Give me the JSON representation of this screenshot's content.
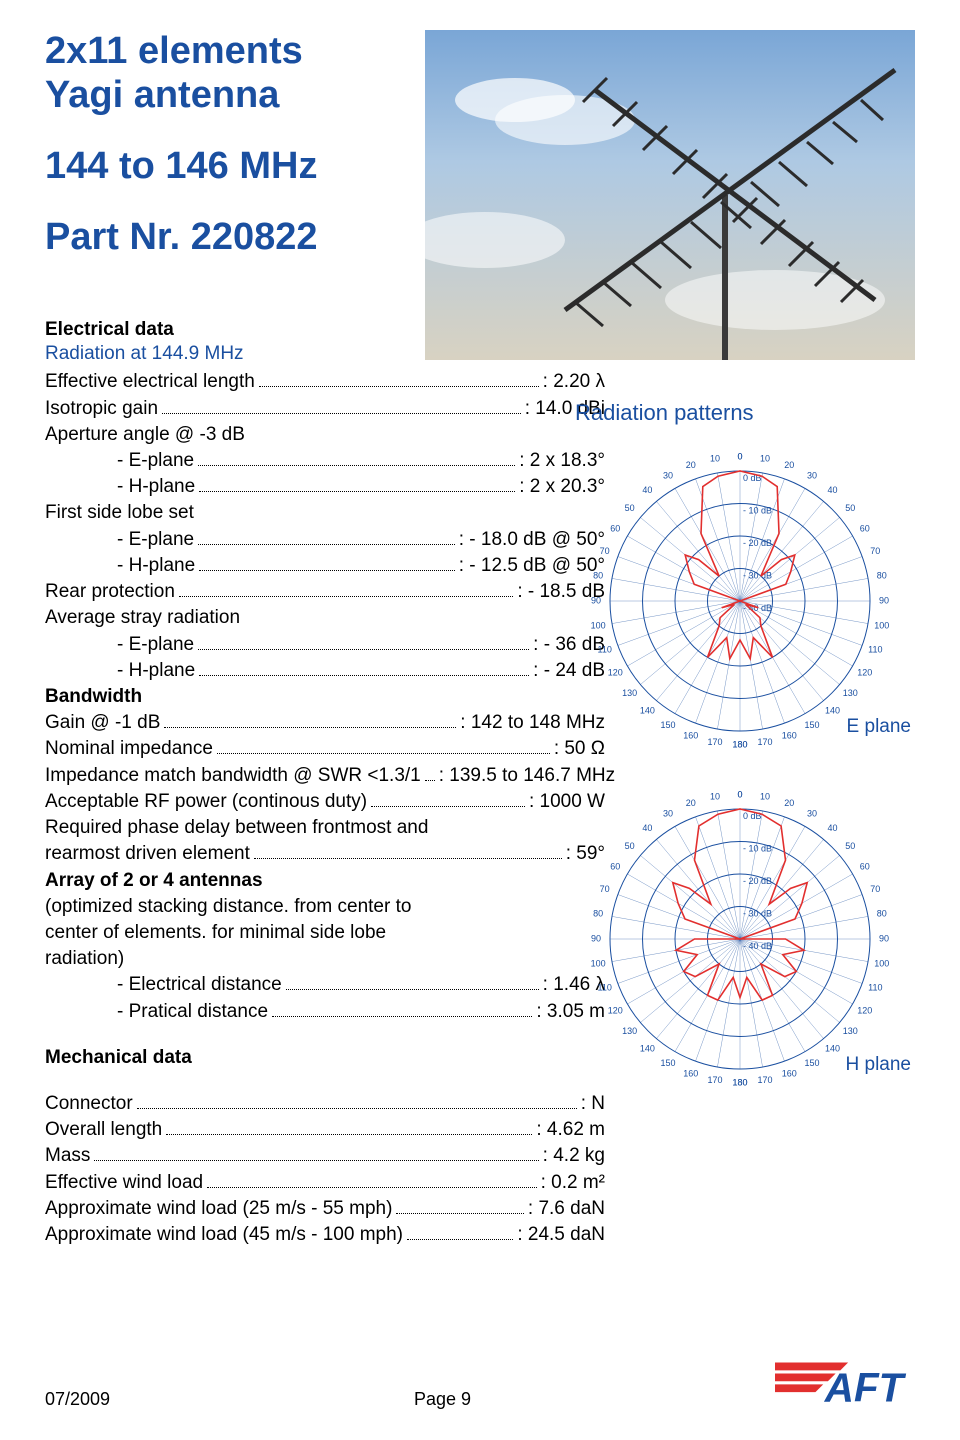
{
  "title": {
    "line1": "2x11 elements",
    "line2": "Yagi antenna",
    "freq": "144 to 146 MHz",
    "part": "Part Nr. 220822"
  },
  "colors": {
    "brand": "#1a4fa0",
    "brand_red": "#e22f2e",
    "text": "#000000",
    "polar_grid": "#1a4fa0",
    "polar_trace": "#e22f2e"
  },
  "electrical": {
    "heading": "Electrical data",
    "subheading": "Radiation at 144.9 MHz",
    "lines": [
      {
        "label": "Effective electrical length",
        "value": ": 2.20 λ"
      },
      {
        "label": "Isotropic gain",
        "value": ": 14.0 dBi"
      },
      {
        "plain": "Aperture angle @ -3 dB"
      },
      {
        "label": "- E-plane",
        "value": ": 2 x 18.3°",
        "indent": true
      },
      {
        "label": "- H-plane",
        "value": ": 2 x 20.3°",
        "indent": true
      },
      {
        "plain": "First side lobe set"
      },
      {
        "label": "- E-plane",
        "value": ": - 18.0 dB @ 50°",
        "indent": true
      },
      {
        "label": "- H-plane",
        "value": ": - 12.5 dB @ 50°",
        "indent": true
      },
      {
        "label": "Rear protection",
        "value": ": - 18.5 dB"
      },
      {
        "plain": "Average stray radiation"
      },
      {
        "label": "- E-plane",
        "value": ": - 36 dB",
        "indent": true
      },
      {
        "label": "- H-plane",
        "value": ": - 24 dB",
        "indent": true
      },
      {
        "plain": "Bandwidth",
        "bold": true
      },
      {
        "label": "Gain @ -1 dB",
        "value": ": 142 to 148 MHz"
      },
      {
        "label": "Nominal impedance",
        "value": ": 50 Ω"
      },
      {
        "label": "Impedance match bandwidth @ SWR <1.3/1",
        "value": ": 139.5 to 146.7 MHz"
      },
      {
        "label": "Acceptable RF power (continous duty)",
        "value": ": 1000 W"
      },
      {
        "plain": "Required phase delay between frontmost and"
      },
      {
        "label": "rearmost driven element",
        "value": ": 59°"
      },
      {
        "plain": "Array of 2 or 4 antennas",
        "bold": true
      },
      {
        "plain": "(optimized stacking distance. from center to"
      },
      {
        "plain": "center of elements. for minimal side lobe"
      },
      {
        "plain": "radiation)"
      },
      {
        "label": "- Electrical distance",
        "value": ": 1.46 λ",
        "indent": true
      },
      {
        "label": "- Pratical distance",
        "value": ": 3.05 m",
        "indent": true
      }
    ]
  },
  "mechanical": {
    "heading": "Mechanical data",
    "lines": [
      {
        "label": "Connector",
        "value": ": N"
      },
      {
        "label": "Overall length",
        "value": ": 4.62 m"
      },
      {
        "label": "Mass",
        "value": ": 4.2 kg"
      },
      {
        "label": "Effective wind load",
        "value": ": 0.2 m²"
      },
      {
        "label": "Approximate wind load (25 m/s - 55 mph)",
        "value": ": 7.6 daN"
      },
      {
        "label": "Approximate wind load (45 m/s - 100 mph)",
        "value": ": 24.5 daN"
      }
    ]
  },
  "radiation": {
    "heading": "Radiation patterns",
    "rings_db": [
      "0 dB",
      "- 10 dB",
      "- 20 dB",
      "- 30 dB",
      "- 40 dB"
    ],
    "angle_labels": [
      0,
      10,
      20,
      30,
      40,
      50,
      60,
      70,
      80,
      90,
      100,
      110,
      120,
      130,
      140,
      150,
      160,
      170,
      180
    ],
    "e_plane": {
      "label": "E plane",
      "points_deg_db": [
        [
          -180,
          -28
        ],
        [
          -170,
          -22
        ],
        [
          -160,
          -28
        ],
        [
          -150,
          -20
        ],
        [
          -140,
          -30
        ],
        [
          -130,
          -32
        ],
        [
          -120,
          -38
        ],
        [
          -110,
          -34
        ],
        [
          -100,
          -40
        ],
        [
          -90,
          -40
        ],
        [
          -80,
          -40
        ],
        [
          -70,
          -25
        ],
        [
          -60,
          -22
        ],
        [
          -50,
          -18
        ],
        [
          -45,
          -22
        ],
        [
          -40,
          -30
        ],
        [
          -30,
          -16
        ],
        [
          -18,
          -3
        ],
        [
          -10,
          -1
        ],
        [
          0,
          0
        ],
        [
          10,
          -1
        ],
        [
          18,
          -3
        ],
        [
          30,
          -16
        ],
        [
          40,
          -30
        ],
        [
          45,
          -22
        ],
        [
          50,
          -18
        ],
        [
          60,
          -22
        ],
        [
          70,
          -25
        ],
        [
          80,
          -40
        ],
        [
          90,
          -40
        ],
        [
          100,
          -40
        ],
        [
          110,
          -34
        ],
        [
          120,
          -38
        ],
        [
          130,
          -32
        ],
        [
          140,
          -30
        ],
        [
          150,
          -20
        ],
        [
          160,
          -28
        ],
        [
          170,
          -22
        ],
        [
          180,
          -28
        ]
      ]
    },
    "h_plane": {
      "label": "H plane",
      "points_deg_db": [
        [
          -180,
          -22
        ],
        [
          -170,
          -28
        ],
        [
          -160,
          -20
        ],
        [
          -150,
          -20
        ],
        [
          -140,
          -30
        ],
        [
          -130,
          -22
        ],
        [
          -120,
          -20
        ],
        [
          -110,
          -26
        ],
        [
          -100,
          -20
        ],
        [
          -90,
          -26
        ],
        [
          -80,
          -40
        ],
        [
          -70,
          -22
        ],
        [
          -60,
          -18
        ],
        [
          -50,
          -13
        ],
        [
          -45,
          -18
        ],
        [
          -40,
          -26
        ],
        [
          -30,
          -12
        ],
        [
          -20,
          -3
        ],
        [
          -10,
          -1
        ],
        [
          0,
          0
        ],
        [
          10,
          -1
        ],
        [
          20,
          -3
        ],
        [
          30,
          -12
        ],
        [
          40,
          -26
        ],
        [
          45,
          -18
        ],
        [
          50,
          -13
        ],
        [
          60,
          -18
        ],
        [
          70,
          -22
        ],
        [
          80,
          -40
        ],
        [
          90,
          -26
        ],
        [
          100,
          -20
        ],
        [
          110,
          -26
        ],
        [
          120,
          -20
        ],
        [
          130,
          -22
        ],
        [
          140,
          -30
        ],
        [
          150,
          -20
        ],
        [
          160,
          -20
        ],
        [
          170,
          -28
        ],
        [
          180,
          -22
        ]
      ]
    }
  },
  "footer": {
    "date": "07/2009",
    "page": "Page 9",
    "logo_text": "AFT"
  }
}
